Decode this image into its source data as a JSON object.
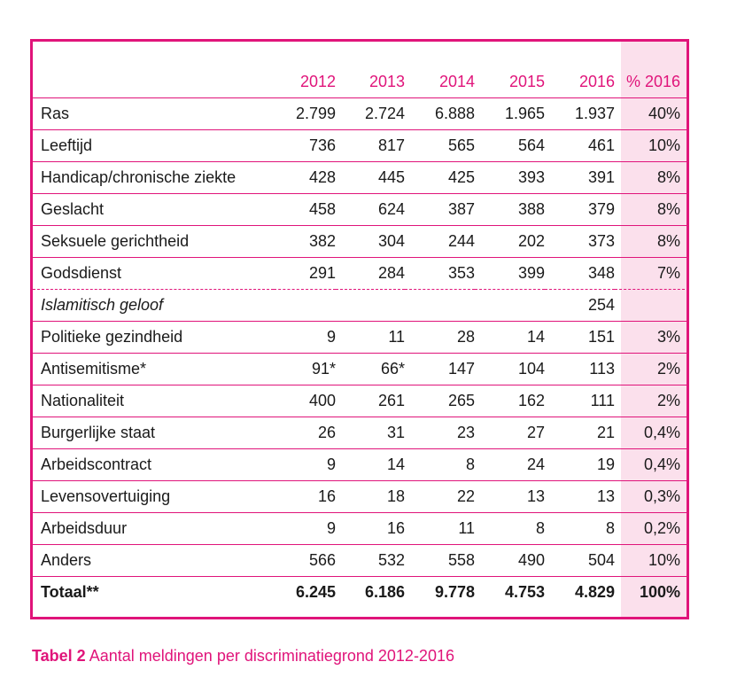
{
  "table": {
    "headers": [
      "",
      "2012",
      "2013",
      "2014",
      "2015",
      "2016",
      "% 2016"
    ],
    "rows": [
      {
        "label": "Ras",
        "values": [
          "2.799",
          "2.724",
          "6.888",
          "1.965",
          "1.937"
        ],
        "pct": "40%"
      },
      {
        "label": "Leeftijd",
        "values": [
          "736",
          "817",
          "565",
          "564",
          "461"
        ],
        "pct": "10%"
      },
      {
        "label": "Handicap/chronische ziekte",
        "values": [
          "428",
          "445",
          "425",
          "393",
          "391"
        ],
        "pct": "8%"
      },
      {
        "label": "Geslacht",
        "values": [
          "458",
          "624",
          "387",
          "388",
          "379"
        ],
        "pct": "8%"
      },
      {
        "label": "Seksuele gerichtheid",
        "values": [
          "382",
          "304",
          "244",
          "202",
          "373"
        ],
        "pct": "8%"
      },
      {
        "label": "Godsdienst",
        "values": [
          "291",
          "284",
          "353",
          "399",
          "348"
        ],
        "pct": "7%"
      },
      {
        "label": "Islamitisch geloof",
        "values": [
          "",
          "",
          "",
          "",
          "254"
        ],
        "pct": ""
      },
      {
        "label": "Politieke gezindheid",
        "values": [
          "9",
          "11",
          "28",
          "14",
          "151"
        ],
        "pct": "3%"
      },
      {
        "label": "Antisemitisme*",
        "values": [
          "91*",
          "66*",
          "147",
          "104",
          "113"
        ],
        "pct": "2%"
      },
      {
        "label": "Nationaliteit",
        "values": [
          "400",
          "261",
          "265",
          "162",
          "111"
        ],
        "pct": "2%"
      },
      {
        "label": "Burgerlijke staat",
        "values": [
          "26",
          "31",
          "23",
          "27",
          "21"
        ],
        "pct": "0,4%"
      },
      {
        "label": "Arbeidscontract",
        "values": [
          "9",
          "14",
          "8",
          "24",
          "19"
        ],
        "pct": "0,4%"
      },
      {
        "label": "Levensovertuiging",
        "values": [
          "16",
          "18",
          "22",
          "13",
          "13"
        ],
        "pct": "0,3%"
      },
      {
        "label": "Arbeidsduur",
        "values": [
          "9",
          "16",
          "11",
          "8",
          "8"
        ],
        "pct": "0,2%"
      },
      {
        "label": "Anders",
        "values": [
          "566",
          "532",
          "558",
          "490",
          "504"
        ],
        "pct": "10%"
      },
      {
        "label": "Totaal**",
        "values": [
          "6.245",
          "6.186",
          "9.778",
          "4.753",
          "4.829"
        ],
        "pct": "100%"
      }
    ]
  },
  "caption": {
    "number": "Tabel 2",
    "text": "Aantal meldingen per discriminatiegrond 2012-2016"
  },
  "colors": {
    "accent": "#e0147a",
    "highlight": "#fbe0ec"
  }
}
